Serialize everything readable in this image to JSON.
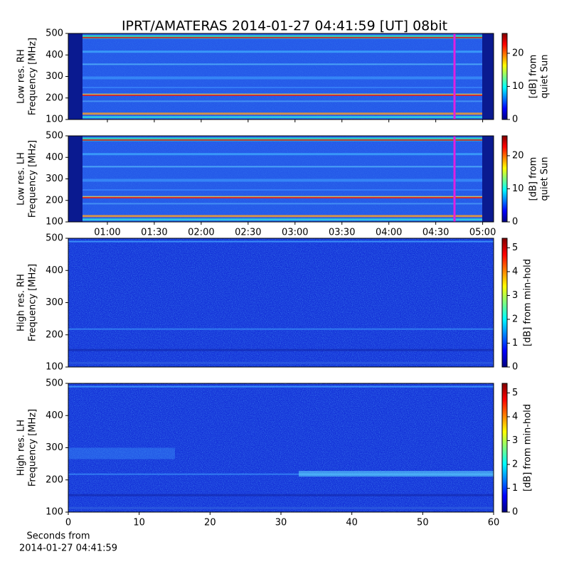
{
  "title": "IPRT/AMATERAS 2014-01-27 04:41:59 [UT]   08bit",
  "chart_data": [
    {
      "type": "heatmap",
      "ylabel": [
        "Low res. RH",
        "Frequency [MHz]"
      ],
      "ylim": [
        100,
        500
      ],
      "yticks": [
        100,
        200,
        300,
        400,
        500
      ],
      "colorbar": {
        "label": [
          "[dB] from",
          "quiet Sun"
        ],
        "clim": [
          0,
          26
        ],
        "ticks": [
          0,
          10,
          20
        ]
      }
    },
    {
      "type": "heatmap",
      "ylabel": [
        "Low res. LH",
        "Frequency [MHz]"
      ],
      "ylim": [
        100,
        500
      ],
      "yticks": [
        100,
        200,
        300,
        400,
        500
      ],
      "xlim": [
        35,
        307
      ],
      "xticks": [
        {
          "value": 60,
          "label": "01:00"
        },
        {
          "value": 90,
          "label": "01:30"
        },
        {
          "value": 120,
          "label": "02:00"
        },
        {
          "value": 150,
          "label": "02:30"
        },
        {
          "value": 180,
          "label": "03:00"
        },
        {
          "value": 210,
          "label": "03:30"
        },
        {
          "value": 240,
          "label": "04:00"
        },
        {
          "value": 270,
          "label": "04:30"
        },
        {
          "value": 300,
          "label": "05:00"
        }
      ],
      "colorbar": {
        "label": [
          "[dB] from",
          "quiet Sun"
        ],
        "clim": [
          0,
          26
        ],
        "ticks": [
          0,
          10,
          20
        ]
      }
    },
    {
      "type": "heatmap",
      "ylabel": [
        "High res. RH",
        "Frequency [MHz]"
      ],
      "ylim": [
        100,
        500
      ],
      "yticks": [
        100,
        200,
        300,
        400,
        500
      ],
      "colorbar": {
        "label": [
          "[dB] from min-hold"
        ],
        "clim": [
          0,
          5.4
        ],
        "ticks": [
          0,
          1,
          2,
          3,
          4,
          5
        ]
      }
    },
    {
      "type": "heatmap",
      "ylabel": [
        "High res. LH",
        "Frequency [MHz]"
      ],
      "ylim": [
        100,
        500
      ],
      "yticks": [
        100,
        200,
        300,
        400,
        500
      ],
      "xlim": [
        0,
        60
      ],
      "xticks": [
        0,
        10,
        20,
        30,
        40,
        50,
        60
      ],
      "xlabel": [
        "Seconds from",
        "2014-01-27 04:41:59"
      ],
      "colorbar": {
        "label": [
          "[dB] from min-hold"
        ],
        "clim": [
          0,
          5.4
        ],
        "ticks": [
          0,
          1,
          2,
          3,
          4,
          5
        ]
      }
    }
  ]
}
